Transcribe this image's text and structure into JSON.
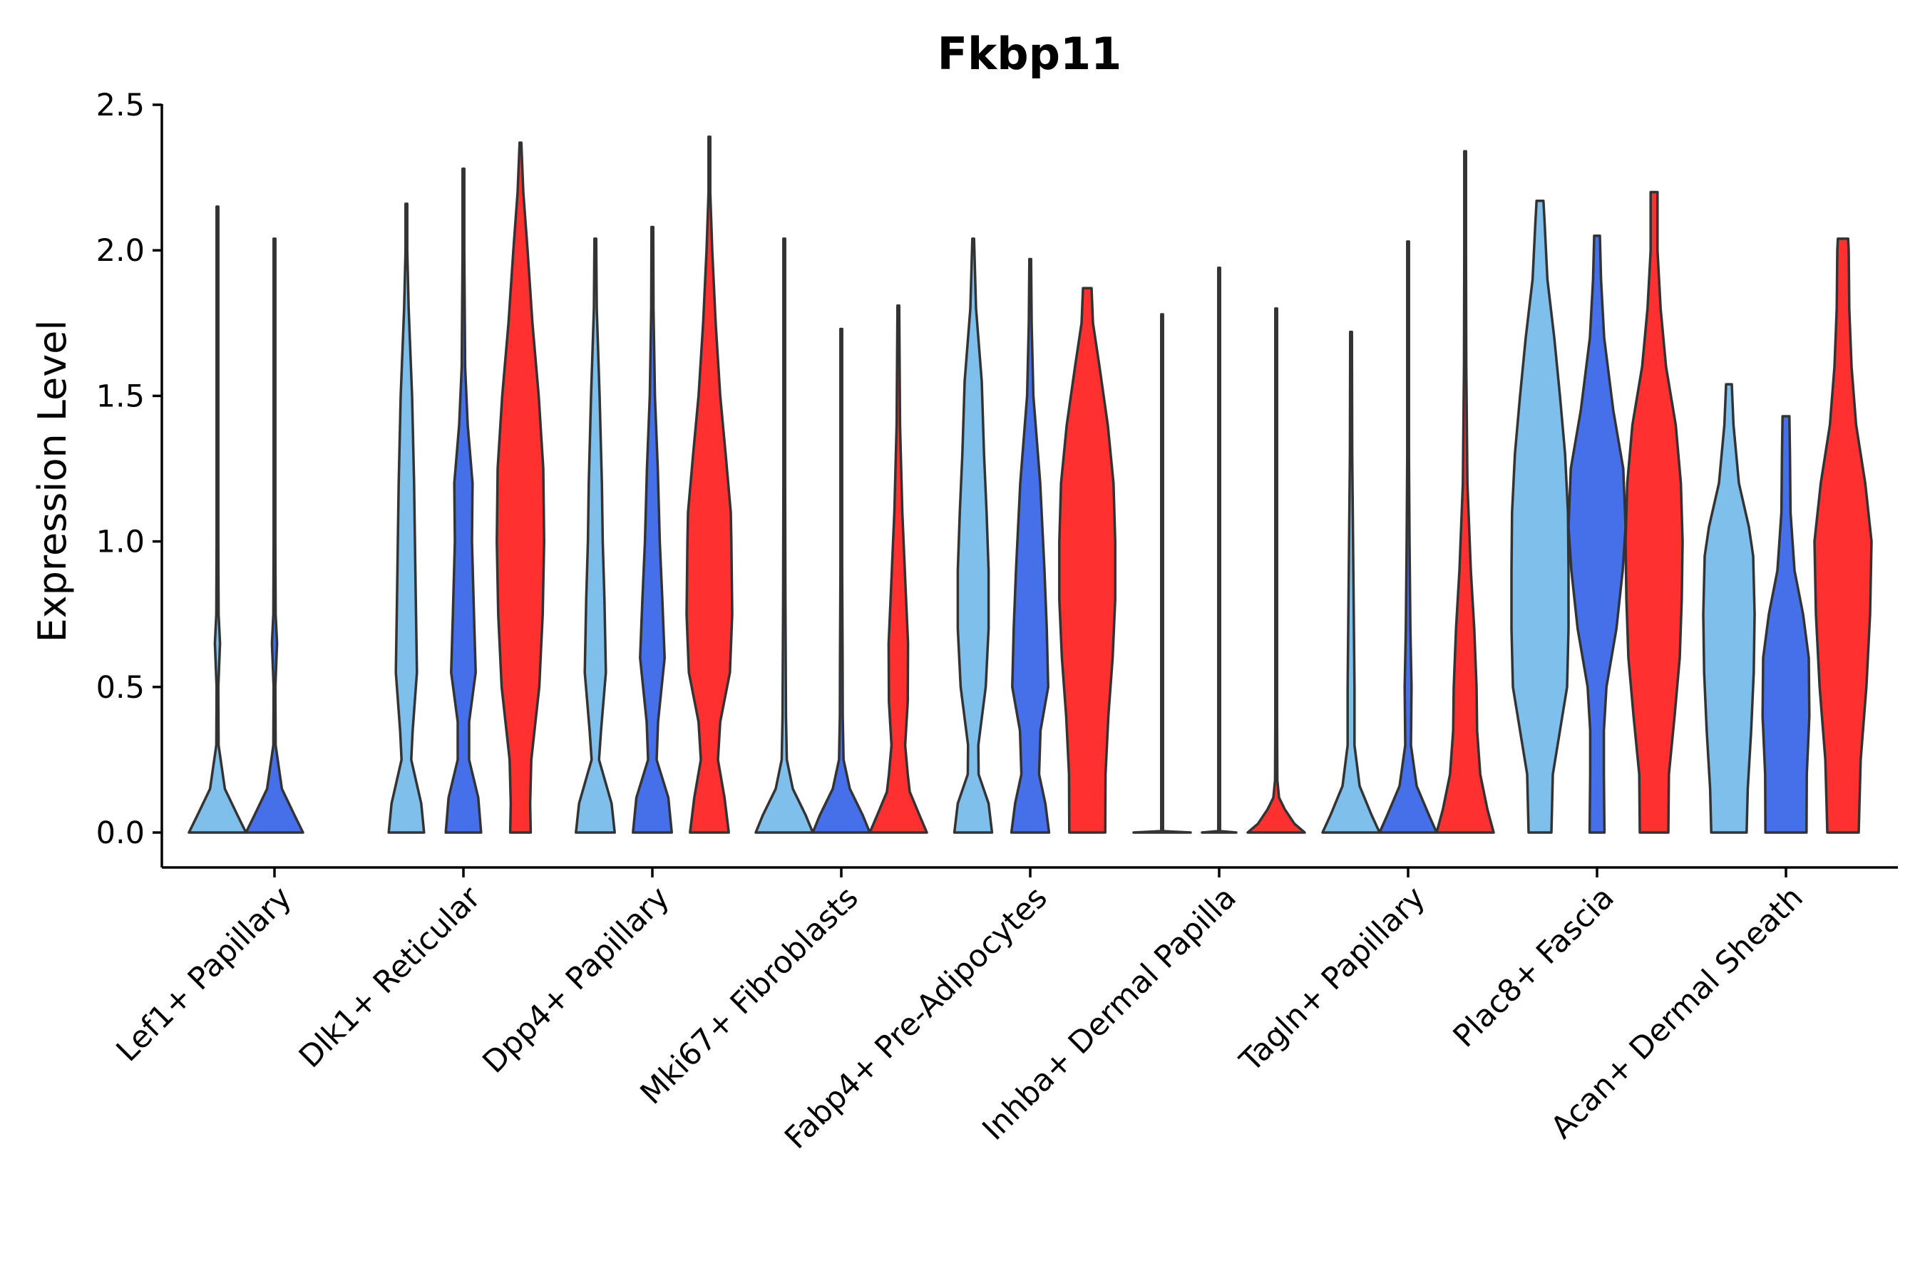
{
  "chart_data": {
    "type": "violin",
    "title": "Fkbp11",
    "xlabel": "",
    "ylabel": "Expression Level",
    "ylim": [
      0,
      2.5
    ],
    "y_ticks": [
      "0.0",
      "0.5",
      "1.0",
      "1.5",
      "2.0",
      "2.5"
    ],
    "y_tick_values": [
      0,
      0.5,
      1.0,
      1.5,
      2.0,
      2.5
    ],
    "categories": [
      "Lef1+ Papillary",
      "Dlk1+ Reticular",
      "Dpp4+ Papillary",
      "Mki67+ Fibroblasts",
      "Fabp4+ Pre-Adipocytes",
      "Inhba+ Dermal Papilla",
      "Tagln+ Papillary",
      "Plac8+ Fascia",
      "Acan+ Dermal Sheath"
    ],
    "series_colors": [
      "#7fbfec",
      "#4570ea",
      "#ff3030"
    ],
    "grid": false,
    "legend": "none",
    "violins": [
      {
        "category": 0,
        "series": 0,
        "max": 2.15,
        "profile": [
          [
            0,
            1.0
          ],
          [
            0.06,
            0.7
          ],
          [
            0.15,
            0.26
          ],
          [
            0.3,
            0.04
          ],
          [
            0.5,
            0.03
          ],
          [
            0.65,
            0.09
          ],
          [
            0.75,
            0.04
          ],
          [
            1.0,
            0.02
          ],
          [
            1.4,
            0.015
          ],
          [
            1.7,
            0.008
          ],
          [
            2.15,
            0.004
          ]
        ]
      },
      {
        "category": 0,
        "series": 1,
        "max": 2.04,
        "profile": [
          [
            0,
            1.0
          ],
          [
            0.06,
            0.7
          ],
          [
            0.15,
            0.26
          ],
          [
            0.3,
            0.04
          ],
          [
            0.5,
            0.03
          ],
          [
            0.65,
            0.09
          ],
          [
            0.75,
            0.04
          ],
          [
            1.0,
            0.02
          ],
          [
            1.3,
            0.015
          ],
          [
            1.7,
            0.008
          ],
          [
            2.04,
            0.004
          ]
        ]
      },
      {
        "category": 1,
        "series": 0,
        "max": 2.16,
        "profile": [
          [
            0,
            0.62
          ],
          [
            0.1,
            0.52
          ],
          [
            0.25,
            0.17
          ],
          [
            0.35,
            0.22
          ],
          [
            0.55,
            0.37
          ],
          [
            0.8,
            0.33
          ],
          [
            1.0,
            0.3
          ],
          [
            1.2,
            0.27
          ],
          [
            1.5,
            0.2
          ],
          [
            1.8,
            0.08
          ],
          [
            2.0,
            0.03
          ],
          [
            2.16,
            0.004
          ]
        ]
      },
      {
        "category": 1,
        "series": 1,
        "max": 2.28,
        "profile": [
          [
            0,
            0.62
          ],
          [
            0.12,
            0.52
          ],
          [
            0.25,
            0.2
          ],
          [
            0.38,
            0.2
          ],
          [
            0.55,
            0.43
          ],
          [
            0.75,
            0.37
          ],
          [
            1.0,
            0.3
          ],
          [
            1.2,
            0.32
          ],
          [
            1.4,
            0.15
          ],
          [
            1.6,
            0.06
          ],
          [
            2.0,
            0.02
          ],
          [
            2.28,
            0.004
          ]
        ]
      },
      {
        "category": 1,
        "series": 2,
        "max": 2.37,
        "profile": [
          [
            0,
            0.36
          ],
          [
            0.1,
            0.34
          ],
          [
            0.25,
            0.38
          ],
          [
            0.5,
            0.66
          ],
          [
            0.75,
            0.78
          ],
          [
            1.0,
            0.83
          ],
          [
            1.25,
            0.8
          ],
          [
            1.5,
            0.64
          ],
          [
            1.75,
            0.42
          ],
          [
            2.0,
            0.25
          ],
          [
            2.2,
            0.1
          ],
          [
            2.37,
            0.004
          ]
        ]
      },
      {
        "category": 2,
        "series": 0,
        "max": 2.04,
        "profile": [
          [
            0,
            0.68
          ],
          [
            0.1,
            0.57
          ],
          [
            0.25,
            0.13
          ],
          [
            0.35,
            0.2
          ],
          [
            0.55,
            0.37
          ],
          [
            0.8,
            0.32
          ],
          [
            1.0,
            0.26
          ],
          [
            1.2,
            0.23
          ],
          [
            1.5,
            0.15
          ],
          [
            1.8,
            0.05
          ],
          [
            2.04,
            0.004
          ]
        ]
      },
      {
        "category": 2,
        "series": 1,
        "max": 2.08,
        "profile": [
          [
            0,
            0.68
          ],
          [
            0.12,
            0.56
          ],
          [
            0.25,
            0.15
          ],
          [
            0.38,
            0.2
          ],
          [
            0.6,
            0.43
          ],
          [
            0.8,
            0.35
          ],
          [
            1.0,
            0.26
          ],
          [
            1.25,
            0.19
          ],
          [
            1.5,
            0.09
          ],
          [
            1.8,
            0.04
          ],
          [
            2.08,
            0.004
          ]
        ]
      },
      {
        "category": 2,
        "series": 2,
        "max": 2.39,
        "profile": [
          [
            0,
            0.68
          ],
          [
            0.12,
            0.53
          ],
          [
            0.25,
            0.3
          ],
          [
            0.38,
            0.38
          ],
          [
            0.55,
            0.72
          ],
          [
            0.75,
            0.8
          ],
          [
            1.0,
            0.77
          ],
          [
            1.1,
            0.75
          ],
          [
            1.3,
            0.57
          ],
          [
            1.5,
            0.38
          ],
          [
            1.75,
            0.22
          ],
          [
            2.0,
            0.1
          ],
          [
            2.2,
            0.02
          ],
          [
            2.39,
            0.004
          ]
        ]
      },
      {
        "category": 3,
        "series": 0,
        "max": 2.04,
        "profile": [
          [
            0,
            1.0
          ],
          [
            0.06,
            0.75
          ],
          [
            0.15,
            0.3
          ],
          [
            0.25,
            0.09
          ],
          [
            0.4,
            0.06
          ],
          [
            0.6,
            0.05
          ],
          [
            0.8,
            0.04
          ],
          [
            1.2,
            0.025
          ],
          [
            1.6,
            0.015
          ],
          [
            2.04,
            0.004
          ]
        ]
      },
      {
        "category": 3,
        "series": 1,
        "max": 1.73,
        "profile": [
          [
            0,
            1.0
          ],
          [
            0.06,
            0.75
          ],
          [
            0.15,
            0.3
          ],
          [
            0.25,
            0.08
          ],
          [
            0.4,
            0.05
          ],
          [
            0.6,
            0.045
          ],
          [
            0.9,
            0.03
          ],
          [
            1.2,
            0.02
          ],
          [
            1.5,
            0.01
          ],
          [
            1.73,
            0.004
          ]
        ]
      },
      {
        "category": 3,
        "series": 2,
        "max": 1.81,
        "profile": [
          [
            0,
            1.0
          ],
          [
            0.06,
            0.74
          ],
          [
            0.14,
            0.4
          ],
          [
            0.2,
            0.33
          ],
          [
            0.3,
            0.24
          ],
          [
            0.45,
            0.33
          ],
          [
            0.65,
            0.34
          ],
          [
            0.85,
            0.25
          ],
          [
            1.1,
            0.14
          ],
          [
            1.4,
            0.06
          ],
          [
            1.81,
            0.004
          ]
        ]
      },
      {
        "category": 4,
        "series": 0,
        "max": 2.04,
        "profile": [
          [
            0,
            0.66
          ],
          [
            0.1,
            0.54
          ],
          [
            0.2,
            0.19
          ],
          [
            0.3,
            0.18
          ],
          [
            0.5,
            0.44
          ],
          [
            0.7,
            0.54
          ],
          [
            0.9,
            0.54
          ],
          [
            1.1,
            0.47
          ],
          [
            1.3,
            0.38
          ],
          [
            1.55,
            0.3
          ],
          [
            1.8,
            0.1
          ],
          [
            2.04,
            0.004
          ]
        ]
      },
      {
        "category": 4,
        "series": 1,
        "max": 1.97,
        "profile": [
          [
            0,
            0.66
          ],
          [
            0.1,
            0.53
          ],
          [
            0.2,
            0.31
          ],
          [
            0.35,
            0.36
          ],
          [
            0.5,
            0.63
          ],
          [
            0.7,
            0.58
          ],
          [
            0.9,
            0.5
          ],
          [
            1.2,
            0.35
          ],
          [
            1.5,
            0.11
          ],
          [
            1.75,
            0.05
          ],
          [
            1.97,
            0.004
          ]
        ]
      },
      {
        "category": 4,
        "series": 2,
        "max": 1.87,
        "profile": [
          [
            0,
            0.63
          ],
          [
            0.2,
            0.64
          ],
          [
            0.4,
            0.74
          ],
          [
            0.6,
            0.89
          ],
          [
            0.8,
            0.98
          ],
          [
            1.0,
            0.98
          ],
          [
            1.2,
            0.92
          ],
          [
            1.4,
            0.72
          ],
          [
            1.6,
            0.43
          ],
          [
            1.75,
            0.2
          ],
          [
            1.87,
            0.15
          ]
        ]
      },
      {
        "category": 5,
        "series": 0,
        "max": 1.78,
        "profile": [
          [
            0,
            1.0
          ],
          [
            0.005,
            0.03
          ],
          [
            1.78,
            0.004
          ]
        ]
      },
      {
        "category": 5,
        "series": 1,
        "max": 1.94,
        "profile": [
          [
            0,
            0.6
          ],
          [
            0.005,
            0.03
          ],
          [
            1.94,
            0.004
          ]
        ]
      },
      {
        "category": 5,
        "series": 2,
        "max": 1.8,
        "profile": [
          [
            0,
            1.0
          ],
          [
            0.03,
            0.64
          ],
          [
            0.08,
            0.3
          ],
          [
            0.12,
            0.1
          ],
          [
            0.18,
            0.04
          ],
          [
            0.4,
            0.02
          ],
          [
            0.8,
            0.02
          ],
          [
            1.2,
            0.008
          ],
          [
            1.8,
            0.004
          ]
        ]
      },
      {
        "category": 6,
        "series": 0,
        "max": 1.72,
        "profile": [
          [
            0,
            1.0
          ],
          [
            0.06,
            0.72
          ],
          [
            0.16,
            0.3
          ],
          [
            0.3,
            0.12
          ],
          [
            0.5,
            0.12
          ],
          [
            0.7,
            0.1
          ],
          [
            1.0,
            0.07
          ],
          [
            1.3,
            0.04
          ],
          [
            1.72,
            0.004
          ]
        ]
      },
      {
        "category": 6,
        "series": 1,
        "max": 2.03,
        "profile": [
          [
            0,
            1.0
          ],
          [
            0.06,
            0.73
          ],
          [
            0.16,
            0.3
          ],
          [
            0.3,
            0.1
          ],
          [
            0.5,
            0.12
          ],
          [
            0.7,
            0.08
          ],
          [
            1.0,
            0.05
          ],
          [
            1.3,
            0.03
          ],
          [
            1.6,
            0.015
          ],
          [
            2.03,
            0.004
          ]
        ]
      },
      {
        "category": 6,
        "series": 2,
        "max": 2.34,
        "profile": [
          [
            0,
            1.0
          ],
          [
            0.08,
            0.78
          ],
          [
            0.2,
            0.53
          ],
          [
            0.35,
            0.42
          ],
          [
            0.5,
            0.4
          ],
          [
            0.7,
            0.32
          ],
          [
            0.9,
            0.2
          ],
          [
            1.2,
            0.08
          ],
          [
            1.6,
            0.04
          ],
          [
            2.0,
            0.02
          ],
          [
            2.34,
            0.004
          ]
        ]
      },
      {
        "category": 7,
        "series": 0,
        "max": 2.17,
        "profile": [
          [
            0,
            0.4
          ],
          [
            0.2,
            0.45
          ],
          [
            0.35,
            0.7
          ],
          [
            0.5,
            0.95
          ],
          [
            0.7,
            1.0
          ],
          [
            0.9,
            1.0
          ],
          [
            1.1,
            0.98
          ],
          [
            1.3,
            0.88
          ],
          [
            1.5,
            0.7
          ],
          [
            1.7,
            0.5
          ],
          [
            1.9,
            0.26
          ],
          [
            2.1,
            0.16
          ],
          [
            2.17,
            0.12
          ]
        ]
      },
      {
        "category": 7,
        "series": 1,
        "max": 2.05,
        "profile": [
          [
            0,
            0.26
          ],
          [
            0.2,
            0.24
          ],
          [
            0.35,
            0.24
          ],
          [
            0.5,
            0.33
          ],
          [
            0.7,
            0.68
          ],
          [
            0.9,
            0.9
          ],
          [
            1.05,
            1.0
          ],
          [
            1.25,
            0.92
          ],
          [
            1.45,
            0.57
          ],
          [
            1.7,
            0.25
          ],
          [
            1.9,
            0.14
          ],
          [
            2.05,
            0.1
          ]
        ]
      },
      {
        "category": 7,
        "series": 2,
        "max": 2.2,
        "profile": [
          [
            0,
            0.5
          ],
          [
            0.2,
            0.52
          ],
          [
            0.4,
            0.72
          ],
          [
            0.6,
            0.9
          ],
          [
            0.8,
            0.97
          ],
          [
            1.0,
            1.0
          ],
          [
            1.2,
            0.94
          ],
          [
            1.4,
            0.76
          ],
          [
            1.6,
            0.42
          ],
          [
            1.8,
            0.23
          ],
          [
            2.0,
            0.12
          ],
          [
            2.2,
            0.12
          ]
        ]
      },
      {
        "category": 8,
        "series": 0,
        "max": 1.54,
        "profile": [
          [
            0,
            0.62
          ],
          [
            0.15,
            0.66
          ],
          [
            0.35,
            0.78
          ],
          [
            0.55,
            0.87
          ],
          [
            0.75,
            0.9
          ],
          [
            0.95,
            0.85
          ],
          [
            1.05,
            0.7
          ],
          [
            1.2,
            0.35
          ],
          [
            1.4,
            0.16
          ],
          [
            1.54,
            0.1
          ]
        ]
      },
      {
        "category": 8,
        "series": 1,
        "max": 1.43,
        "profile": [
          [
            0,
            0.72
          ],
          [
            0.2,
            0.73
          ],
          [
            0.4,
            0.82
          ],
          [
            0.6,
            0.8
          ],
          [
            0.75,
            0.6
          ],
          [
            0.9,
            0.3
          ],
          [
            1.1,
            0.16
          ],
          [
            1.3,
            0.14
          ],
          [
            1.43,
            0.12
          ]
        ]
      },
      {
        "category": 8,
        "series": 2,
        "max": 2.04,
        "profile": [
          [
            0,
            0.55
          ],
          [
            0.25,
            0.62
          ],
          [
            0.5,
            0.82
          ],
          [
            0.75,
            0.95
          ],
          [
            1.0,
            1.0
          ],
          [
            1.2,
            0.78
          ],
          [
            1.4,
            0.46
          ],
          [
            1.6,
            0.3
          ],
          [
            1.8,
            0.22
          ],
          [
            2.0,
            0.2
          ],
          [
            2.04,
            0.18
          ]
        ]
      }
    ]
  }
}
